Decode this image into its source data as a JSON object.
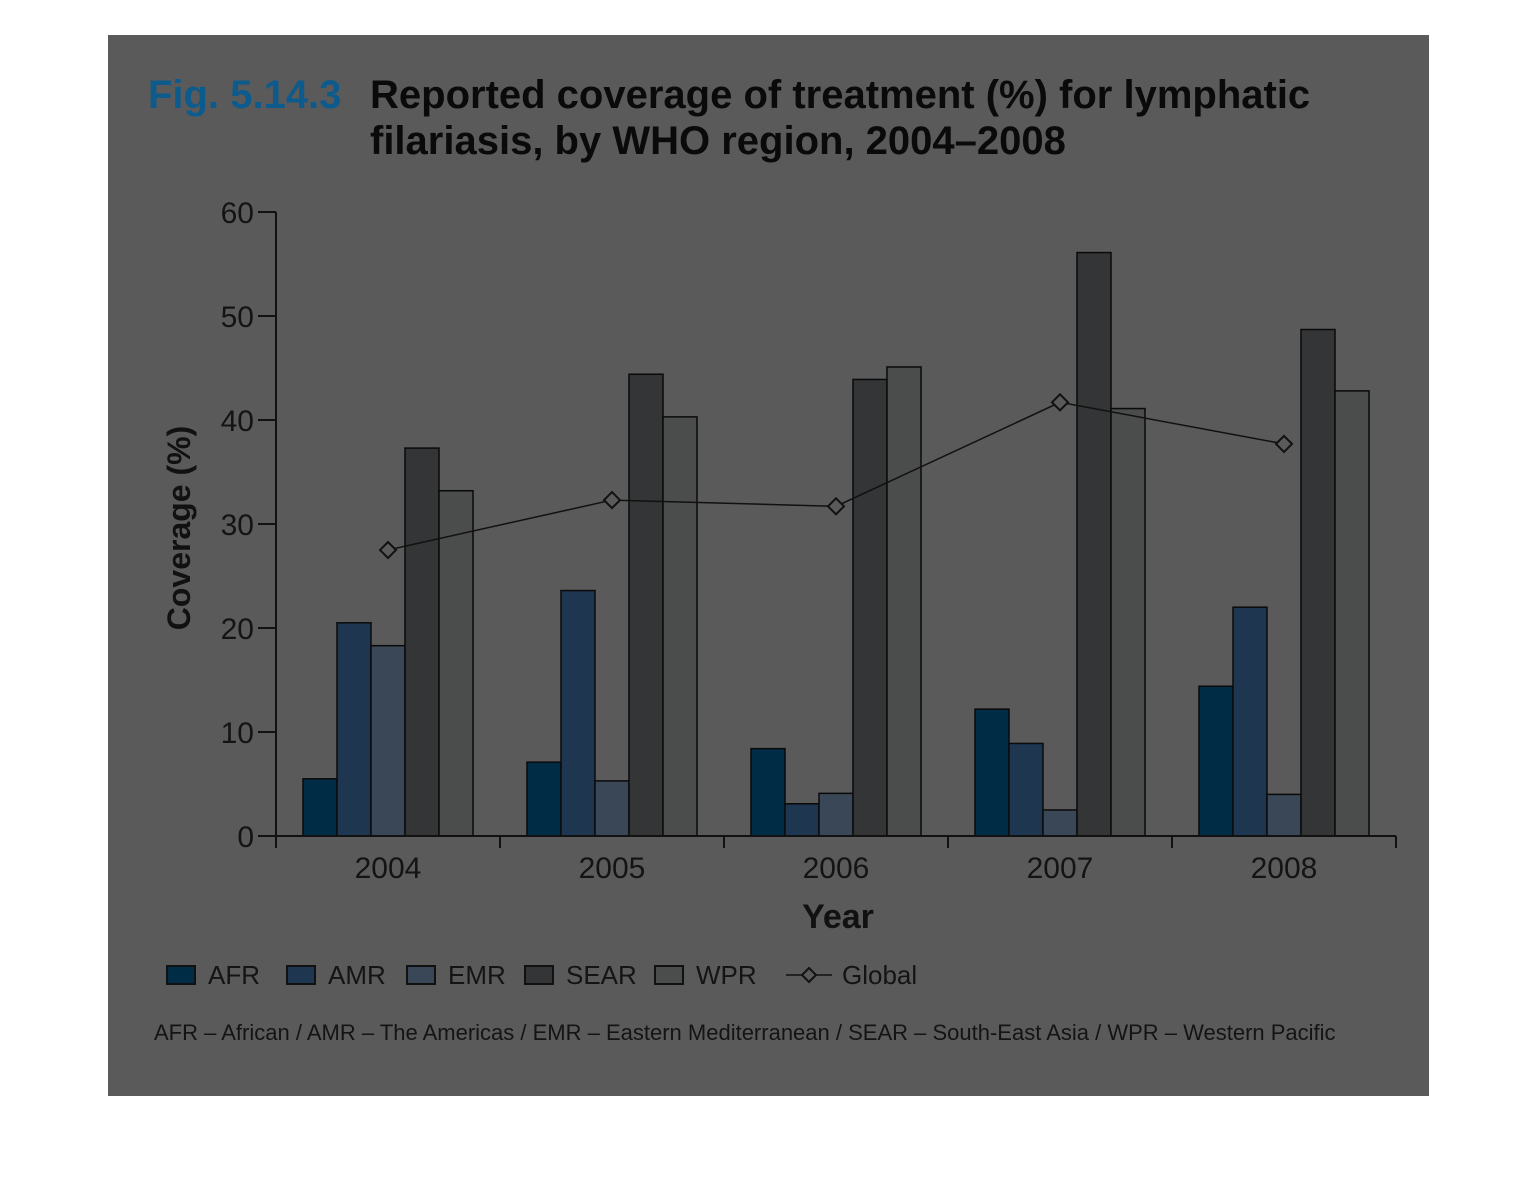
{
  "figure": {
    "number": "Fig. 5.14.3",
    "title": "Reported coverage of treatment (%) for lymphatic filariasis, by WHO region, 2004–2008"
  },
  "chart_data": {
    "type": "bar",
    "title": "Reported coverage of treatment (%) for lymphatic filariasis, by WHO region, 2004–2008",
    "xlabel": "Year",
    "ylabel": "Coverage (%)",
    "ylim": [
      0,
      60
    ],
    "yticks": [
      "0",
      "10",
      "20",
      "30",
      "40",
      "50",
      "60"
    ],
    "categories": [
      "2004",
      "2005",
      "2006",
      "2007",
      "2008"
    ],
    "series": [
      {
        "name": "AFR",
        "color": "#002d45",
        "values": [
          5.5,
          7.1,
          8.4,
          12.2,
          14.4
        ]
      },
      {
        "name": "AMR",
        "color": "#1f3650",
        "values": [
          20.5,
          23.6,
          3.1,
          8.9,
          22.0
        ]
      },
      {
        "name": "EMR",
        "color": "#3a4757",
        "values": [
          18.3,
          5.3,
          4.1,
          2.5,
          4.0
        ]
      },
      {
        "name": "SEAR",
        "color": "#333536",
        "values": [
          37.3,
          44.4,
          43.9,
          56.1,
          48.7
        ]
      },
      {
        "name": "WPR",
        "color": "#4b4c4c",
        "values": [
          33.2,
          40.3,
          45.1,
          41.1,
          42.8
        ]
      }
    ],
    "line_series": {
      "name": "Global",
      "values": [
        27.5,
        32.3,
        31.7,
        41.7,
        37.7
      ]
    },
    "grid": false,
    "legend_position": "bottom"
  },
  "footnote": "AFR – African / AMR – The Americas / EMR – Eastern Mediterranean / SEAR – South-East Asia / WPR – Western Pacific"
}
